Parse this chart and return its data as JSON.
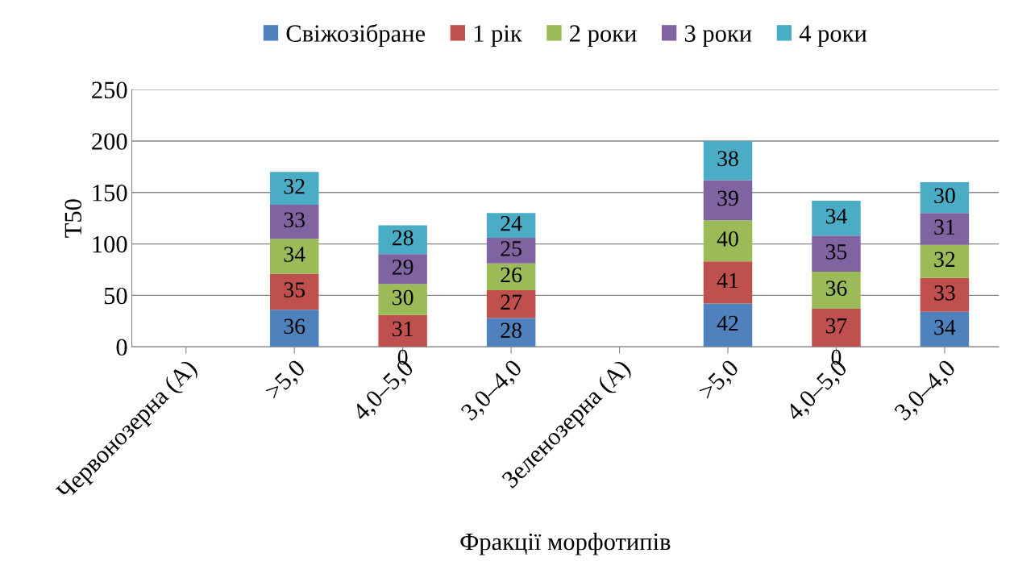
{
  "chart_data": {
    "type": "bar",
    "stacked": true,
    "xlabel": "Фракції морфотипів",
    "ylabel": "T50",
    "categories": [
      "Червонозерна (А)",
      ">5,0",
      "4,0–5,0",
      "3,0–4,0",
      "Зеленозерна (А)",
      ">5,0",
      "4,0–5,0",
      "3,0–4,0"
    ],
    "series": [
      {
        "name": "Свіжозібране",
        "color": "#4f81bd",
        "values": [
          null,
          36,
          0,
          28,
          null,
          42,
          0,
          34
        ]
      },
      {
        "name": "1 рік",
        "color": "#c0504d",
        "values": [
          null,
          35,
          31,
          27,
          null,
          41,
          37,
          33
        ]
      },
      {
        "name": "2 роки",
        "color": "#9bbb59",
        "values": [
          null,
          34,
          30,
          26,
          null,
          40,
          36,
          32
        ]
      },
      {
        "name": "3 роки",
        "color": "#8064a2",
        "values": [
          null,
          33,
          29,
          25,
          null,
          39,
          35,
          31
        ]
      },
      {
        "name": "4 роки",
        "color": "#4bacc6",
        "values": [
          null,
          32,
          28,
          24,
          null,
          38,
          34,
          30
        ]
      }
    ],
    "ylim": [
      0,
      250
    ],
    "yticks": [
      0,
      50,
      100,
      150,
      200,
      250
    ],
    "grid": "y",
    "legend": "top",
    "data_labels": true
  }
}
